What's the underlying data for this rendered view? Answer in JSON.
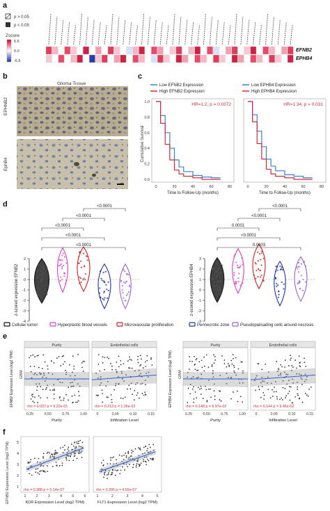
{
  "panels": {
    "a": {
      "letter": "a",
      "legend_sig": [
        "p > 0.05",
        "p < 0.05"
      ],
      "zscore_title": "Zscore",
      "zscore_ticks": [
        "6.5",
        "0.0",
        "-6.5"
      ],
      "row_labels": [
        "EFNB2",
        "EPHB4"
      ],
      "row_colors": [
        "#e03c5c",
        "#f5b7c4",
        "#ffffff",
        "#e84a6a",
        "#f7c7d2",
        "#ffffff",
        "#cc2244",
        "#ffffff",
        "#f29fb1",
        "#ffffff",
        "#e03c5c",
        "#f7c7d2",
        "#ffffff",
        "#d8e1f7",
        "#f5b7c4",
        "#cc2244",
        "#ffffff",
        "#e84a6a",
        "#f29fb1",
        "#ffffff",
        "#f7c7d2",
        "#e03c5c",
        "#ffffff",
        "#f5b7c4",
        "#cc2244",
        "#ffffff",
        "#e84a6a",
        "#d8e1f7",
        "#ffffff",
        "#f29fb1",
        "#e03c5c",
        "#ffffff",
        "#f7c7d2",
        "#cc2244",
        "#ffffff",
        "#e84a6a",
        "#f5b7c4",
        "#ffffff",
        "#f29fb1",
        "#e03c5c"
      ],
      "row2_colors": [
        "#f7c7d2",
        "#ffffff",
        "#e84a6a",
        "#ffffff",
        "#f5b7c4",
        "#cc2244",
        "#ffffff",
        "#2a3ea8",
        "#f7c7d2",
        "#e03c5c",
        "#ffffff",
        "#f29fb1",
        "#cc2244",
        "#ffffff",
        "#e84a6a",
        "#f5b7c4",
        "#ffffff",
        "#d8e1f7",
        "#e03c5c",
        "#f7c7d2",
        "#ffffff",
        "#cc2244",
        "#f29fb1",
        "#ffffff",
        "#e84a6a",
        "#f5b7c4",
        "#ffffff",
        "#e03c5c",
        "#f7c7d2",
        "#ffffff",
        "#cc2244",
        "#f29fb1",
        "#ffffff",
        "#e84a6a",
        "#f5b7c4",
        "#ffffff",
        "#e03c5c",
        "#f7c7d2",
        "#ffffff",
        "#cc2244"
      ]
    },
    "b": {
      "letter": "b",
      "title": "Glioma Tissue",
      "labels": [
        "EPHNB2",
        "EphB4"
      ]
    },
    "c": {
      "letter": "c",
      "ylabel": "Cumulative Survival",
      "plots": [
        {
          "legend": [
            "Low EFNB2 Expression",
            "High EFNB2 Expression"
          ],
          "hr": "HR=1.2, p = 0.0372",
          "xlabel": "Time to Follow-Up (months)",
          "xticks": [
            "0",
            "20",
            "40",
            "60",
            "80"
          ],
          "yticks": [
            "1.0",
            "0.8",
            "0.6",
            "0.4",
            "0.2",
            "0.0"
          ]
        },
        {
          "legend": [
            "Low EPHB4 Expression",
            "High EPHB4 Expression"
          ],
          "hr": "HR=1.34, p = 0.031",
          "xlabel": "Time to Follow-Up (months)",
          "xticks": [
            "0",
            "20",
            "40",
            "60",
            "80"
          ],
          "yticks": []
        }
      ]
    },
    "d": {
      "letter": "d",
      "plots": [
        {
          "ylabel": "z-scored expression EFNB2",
          "yticks": [
            "2",
            "1",
            "0",
            "-1",
            "-2",
            "-3",
            "-4"
          ],
          "pvals": [
            "<0.0001",
            "<0.0001",
            "<0.0001",
            "<0.0001",
            "<0.0001"
          ]
        },
        {
          "ylabel": "z-scored expression EPHB4",
          "yticks": [
            "3",
            "2",
            "1",
            "0",
            "-1",
            "-2",
            "-3"
          ],
          "pvals": [
            "0.0003",
            "<0.0001",
            "0.0001",
            "<0.0001",
            "<0.0001"
          ]
        }
      ],
      "legend": [
        "Cellular tumor",
        "Hyperplastic blood vessels",
        "Microvascular proliferation",
        "Perinecrotic zone",
        "Pseudopalisading cells around necrosis"
      ],
      "colors": [
        "#111111",
        "#e040c0",
        "#d42020",
        "#2030b0",
        "#9a60d8"
      ]
    },
    "e": {
      "letter": "e",
      "plots": [
        {
          "ylabel": "EFNB2 Expression Level (log2 TPM)",
          "strips": [
            "Purity",
            "Endothelial cells"
          ],
          "side": "GBM",
          "stats": [
            "rho = 0.037",
            "p = 9.22e-01",
            "rho = 0.213",
            "p = 1.26e-02"
          ],
          "xlabels": [
            "Purity",
            "Infiltration Level"
          ],
          "xticks1": [
            "0.25",
            "0.50",
            "0.75",
            "1.00"
          ],
          "xticks2": [
            "0",
            "0.05",
            "0.10",
            "0.15"
          ]
        },
        {
          "ylabel": "EPHB4 Expression Level (log2 TPM)",
          "strips": [
            "Purity",
            "Endothelial cells"
          ],
          "side": "GBM",
          "stats": [
            "rho = 0.148",
            "p = 6.97e-02",
            "rho = 0.144",
            "p = 9.45e-02"
          ],
          "xlabels": [
            "Purity",
            "Infiltration Level"
          ],
          "xticks1": [
            "0.25",
            "0.50",
            "0.75",
            "1.00"
          ],
          "xticks2": [
            "0",
            "0.05",
            "0.10",
            "0.15"
          ]
        }
      ]
    },
    "f": {
      "letter": "f",
      "ylabel": "EFNB2 Expression Level (log2 TPM)",
      "plots": [
        {
          "xlabel": "KDR Expression Level (log2 TPM)",
          "stats": "rho = 0.388   p = 5.14e-07",
          "xticks": [
            "1",
            "2",
            "3",
            "4",
            "5",
            "6"
          ]
        },
        {
          "xlabel": "FLT1 Expression Level (log2 TPM)",
          "stats": "rho = 0.396   p = 4.55e-07",
          "xticks": [
            "1",
            "2",
            "3",
            "4",
            "5"
          ]
        }
      ],
      "yticks": [
        "5",
        "4",
        "3",
        "2",
        "1"
      ]
    }
  },
  "chart_data": [
    {
      "type": "line",
      "title": "",
      "xlabel": "Time to Follow-Up (months)",
      "ylabel": "Cumulative Survival",
      "ylim": [
        0,
        1
      ],
      "xlim": [
        0,
        80
      ],
      "series": [
        {
          "name": "Low EFNB2 Expression",
          "x": [
            0,
            5,
            10,
            15,
            20,
            25,
            30,
            40,
            50,
            60,
            70
          ],
          "y": [
            1.0,
            0.82,
            0.6,
            0.4,
            0.25,
            0.16,
            0.1,
            0.05,
            0.03,
            0.02,
            0.02
          ]
        },
        {
          "name": "High EFNB2 Expression",
          "x": [
            0,
            5,
            10,
            15,
            20,
            25,
            30,
            40,
            50,
            60,
            70
          ],
          "y": [
            1.0,
            0.72,
            0.45,
            0.25,
            0.12,
            0.07,
            0.04,
            0.02,
            0.0,
            0.0,
            0.0
          ]
        }
      ]
    },
    {
      "type": "line",
      "title": "",
      "xlabel": "Time to Follow-Up (months)",
      "ylabel": "",
      "ylim": [
        0,
        1
      ],
      "xlim": [
        0,
        80
      ],
      "series": [
        {
          "name": "Low EPHB4 Expression",
          "x": [
            0,
            5,
            10,
            15,
            20,
            25,
            30,
            40,
            50,
            60,
            70
          ],
          "y": [
            1.0,
            0.83,
            0.62,
            0.42,
            0.26,
            0.17,
            0.11,
            0.06,
            0.04,
            0.02,
            0.02
          ]
        },
        {
          "name": "High EPHB4 Expression",
          "x": [
            0,
            5,
            10,
            15,
            20,
            25,
            30,
            40,
            50,
            60,
            70
          ],
          "y": [
            1.0,
            0.74,
            0.46,
            0.26,
            0.13,
            0.07,
            0.04,
            0.02,
            0.0,
            0.0,
            0.0
          ]
        }
      ]
    },
    {
      "type": "scatter",
      "title": "",
      "xlabel": "KDR Expression Level (log2 TPM)",
      "ylabel": "EFNB2 Expression Level (log2 TPM)",
      "fit": {
        "slope": 0.42,
        "intercept": 2.3
      },
      "xlim": [
        1,
        6
      ],
      "ylim": [
        1,
        5.5
      ]
    },
    {
      "type": "scatter",
      "title": "",
      "xlabel": "FLT1 Expression Level (log2 TPM)",
      "ylabel": "",
      "fit": {
        "slope": 0.5,
        "intercept": 2.0
      },
      "xlim": [
        1,
        5
      ],
      "ylim": [
        1,
        5.5
      ]
    }
  ]
}
